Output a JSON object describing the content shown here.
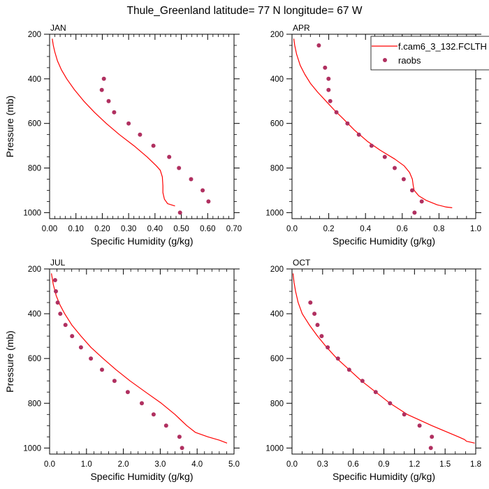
{
  "chart_data": {
    "title": "Thule_Greenland  latitude= 77 N longitude= 67 W",
    "type": "line",
    "legend": {
      "placement": "top-right",
      "entries": [
        {
          "label": "f.cam6_3_132.FCLTH",
          "kind": "line",
          "color": "#ff0000"
        },
        {
          "label": "raobs",
          "kind": "marker",
          "color": "#b03060"
        }
      ]
    },
    "colors": {
      "model": "#ff0000",
      "obs": "#b03060",
      "axis": "#000000"
    },
    "panels": [
      {
        "name": "JAN",
        "type": "line",
        "xlabel": "Specific Humidity (g/kg)",
        "ylabel": "Pressure (mb)",
        "xlim": [
          0.0,
          0.7
        ],
        "ylim": [
          200,
          1027
        ],
        "y_inverted": false,
        "xticks": [
          0.0,
          0.1,
          0.2,
          0.3,
          0.4,
          0.5,
          0.6,
          0.7
        ],
        "xtick_labels": [
          "0.00",
          "0.10",
          "0.20",
          "0.30",
          "0.40",
          "0.50",
          "0.60",
          "0.70"
        ],
        "x_minor_per_major": 5,
        "yticks": [
          200,
          400,
          600,
          800,
          1000
        ],
        "ytick_labels": [
          "200",
          "400",
          "600",
          "800",
          "1000"
        ],
        "show_ylabel": true,
        "series": [
          {
            "name": "f.cam6_3_132.FCLTH",
            "kind": "line",
            "points": [
              [
                0.01,
                220
              ],
              [
                0.014,
                250
              ],
              [
                0.02,
                280
              ],
              [
                0.03,
                320
              ],
              [
                0.045,
                360
              ],
              [
                0.065,
                400
              ],
              [
                0.095,
                450
              ],
              [
                0.13,
                500
              ],
              [
                0.17,
                550
              ],
              [
                0.215,
                600
              ],
              [
                0.265,
                650
              ],
              [
                0.32,
                700
              ],
              [
                0.37,
                750
              ],
              [
                0.405,
                790
              ],
              [
                0.42,
                810
              ],
              [
                0.428,
                840
              ],
              [
                0.43,
                880
              ],
              [
                0.43,
                910
              ],
              [
                0.436,
                940
              ],
              [
                0.448,
                960
              ],
              [
                0.47,
                968
              ],
              [
                0.476,
                970
              ]
            ]
          },
          {
            "name": "raobs",
            "kind": "marker",
            "points": [
              [
                0.206,
                400
              ],
              [
                0.198,
                450
              ],
              [
                0.224,
                500
              ],
              [
                0.245,
                550
              ],
              [
                0.3,
                600
              ],
              [
                0.343,
                650
              ],
              [
                0.394,
                700
              ],
              [
                0.454,
                750
              ],
              [
                0.491,
                800
              ],
              [
                0.537,
                850
              ],
              [
                0.581,
                900
              ],
              [
                0.603,
                950
              ],
              [
                0.495,
                1000
              ]
            ]
          }
        ]
      },
      {
        "name": "APR",
        "type": "line",
        "xlabel": "Specific Humidity (g/kg)",
        "ylabel": "",
        "xlim": [
          0.0,
          1.0
        ],
        "ylim": [
          200,
          1027
        ],
        "xticks": [
          0.0,
          0.2,
          0.4,
          0.6,
          0.8,
          1.0
        ],
        "xtick_labels": [
          "0.0",
          "0.2",
          "0.4",
          "0.6",
          "0.8",
          "1.0"
        ],
        "x_minor_per_major": 4,
        "yticks": [
          200,
          400,
          600,
          800,
          1000
        ],
        "ytick_labels": [
          "200",
          "400",
          "600",
          "800",
          "1000"
        ],
        "show_ylabel": false,
        "series": [
          {
            "name": "f.cam6_3_132.FCLTH",
            "kind": "line",
            "points": [
              [
                0.01,
                220
              ],
              [
                0.015,
                250
              ],
              [
                0.025,
                290
              ],
              [
                0.045,
                340
              ],
              [
                0.07,
                380
              ],
              [
                0.1,
                420
              ],
              [
                0.14,
                460
              ],
              [
                0.185,
                500
              ],
              [
                0.23,
                540
              ],
              [
                0.28,
                580
              ],
              [
                0.34,
                630
              ],
              [
                0.41,
                680
              ],
              [
                0.48,
                720
              ],
              [
                0.56,
                760
              ],
              [
                0.61,
                790
              ],
              [
                0.64,
                820
              ],
              [
                0.655,
                850
              ],
              [
                0.66,
                880
              ],
              [
                0.665,
                900
              ],
              [
                0.69,
                925
              ],
              [
                0.73,
                945
              ],
              [
                0.79,
                965
              ],
              [
                0.84,
                975
              ],
              [
                0.872,
                978
              ]
            ]
          },
          {
            "name": "raobs",
            "kind": "marker",
            "points": [
              [
                0.146,
                250
              ],
              [
                0.18,
                350
              ],
              [
                0.199,
                400
              ],
              [
                0.199,
                450
              ],
              [
                0.208,
                500
              ],
              [
                0.242,
                550
              ],
              [
                0.302,
                600
              ],
              [
                0.364,
                650
              ],
              [
                0.433,
                700
              ],
              [
                0.505,
                750
              ],
              [
                0.559,
                800
              ],
              [
                0.608,
                850
              ],
              [
                0.654,
                900
              ],
              [
                0.706,
                950
              ],
              [
                0.667,
                1000
              ]
            ]
          }
        ]
      },
      {
        "name": "JUL",
        "type": "line",
        "xlabel": "Specific Humidity (g/kg)",
        "ylabel": "Pressure (mb)",
        "xlim": [
          0.0,
          5.0
        ],
        "ylim": [
          200,
          1027
        ],
        "xticks": [
          0.0,
          1.0,
          2.0,
          3.0,
          4.0,
          5.0
        ],
        "xtick_labels": [
          "0.0",
          "1.0",
          "2.0",
          "3.0",
          "4.0",
          "5.0"
        ],
        "x_minor_per_major": 5,
        "yticks": [
          200,
          400,
          600,
          800,
          1000
        ],
        "ytick_labels": [
          "200",
          "400",
          "600",
          "800",
          "1000"
        ],
        "show_ylabel": true,
        "series": [
          {
            "name": "f.cam6_3_132.FCLTH",
            "kind": "line",
            "points": [
              [
                0.05,
                220
              ],
              [
                0.1,
                270
              ],
              [
                0.18,
                320
              ],
              [
                0.28,
                360
              ],
              [
                0.41,
                400
              ],
              [
                0.6,
                450
              ],
              [
                0.85,
                500
              ],
              [
                1.12,
                550
              ],
              [
                1.45,
                600
              ],
              [
                1.8,
                650
              ],
              [
                2.18,
                700
              ],
              [
                2.6,
                750
              ],
              [
                3.03,
                800
              ],
              [
                3.4,
                850
              ],
              [
                3.72,
                900
              ],
              [
                3.95,
                930
              ],
              [
                4.29,
                950
              ],
              [
                4.6,
                965
              ],
              [
                4.81,
                978
              ]
            ]
          },
          {
            "name": "raobs",
            "kind": "marker",
            "points": [
              [
                0.15,
                250
              ],
              [
                0.17,
                300
              ],
              [
                0.22,
                350
              ],
              [
                0.29,
                400
              ],
              [
                0.43,
                450
              ],
              [
                0.61,
                500
              ],
              [
                0.85,
                550
              ],
              [
                1.12,
                600
              ],
              [
                1.42,
                650
              ],
              [
                1.76,
                700
              ],
              [
                2.12,
                750
              ],
              [
                2.5,
                800
              ],
              [
                2.82,
                850
              ],
              [
                3.16,
                900
              ],
              [
                3.52,
                950
              ],
              [
                3.59,
                1000
              ]
            ]
          }
        ]
      },
      {
        "name": "OCT",
        "type": "line",
        "xlabel": "Specific Humidity (g/kg)",
        "ylabel": "",
        "xlim": [
          0.0,
          1.8
        ],
        "ylim": [
          200,
          1027
        ],
        "xticks": [
          0.0,
          0.3,
          0.6,
          0.9,
          1.2,
          1.5,
          1.8
        ],
        "xtick_labels": [
          "0.0",
          "0.3",
          "0.6",
          "0.9",
          "1.2",
          "1.5",
          "1.8"
        ],
        "x_minor_per_major": 3,
        "yticks": [
          200,
          400,
          600,
          800,
          1000
        ],
        "ytick_labels": [
          "200",
          "400",
          "600",
          "800",
          "1000"
        ],
        "show_ylabel": false,
        "series": [
          {
            "name": "f.cam6_3_132.FCLTH",
            "kind": "line",
            "points": [
              [
                0.01,
                220
              ],
              [
                0.02,
                260
              ],
              [
                0.035,
                300
              ],
              [
                0.06,
                350
              ],
              [
                0.1,
                400
              ],
              [
                0.17,
                450
              ],
              [
                0.25,
                500
              ],
              [
                0.34,
                550
              ],
              [
                0.44,
                600
              ],
              [
                0.56,
                650
              ],
              [
                0.68,
                700
              ],
              [
                0.82,
                750
              ],
              [
                0.96,
                800
              ],
              [
                1.13,
                850
              ],
              [
                1.37,
                900
              ],
              [
                1.5,
                925
              ],
              [
                1.63,
                950
              ],
              [
                1.69,
                962
              ],
              [
                1.71,
                970
              ],
              [
                1.76,
                975
              ],
              [
                1.79,
                978
              ]
            ]
          },
          {
            "name": "raobs",
            "kind": "marker",
            "points": [
              [
                0.18,
                350
              ],
              [
                0.22,
                400
              ],
              [
                0.25,
                450
              ],
              [
                0.29,
                500
              ],
              [
                0.35,
                550
              ],
              [
                0.45,
                600
              ],
              [
                0.56,
                650
              ],
              [
                0.69,
                700
              ],
              [
                0.82,
                750
              ],
              [
                0.96,
                800
              ],
              [
                1.1,
                850
              ],
              [
                1.25,
                900
              ],
              [
                1.37,
                950
              ],
              [
                1.36,
                1000
              ]
            ]
          }
        ]
      }
    ]
  }
}
